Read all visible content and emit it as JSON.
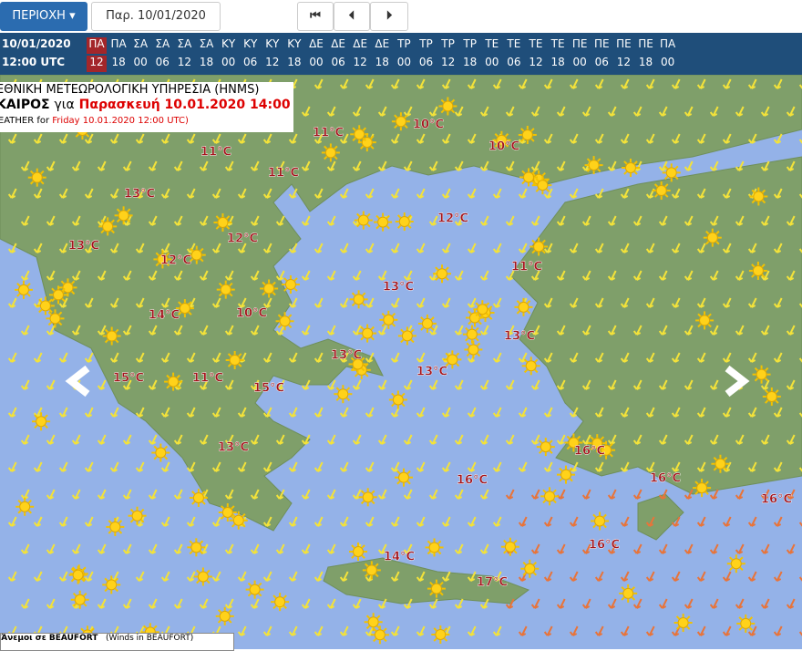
{
  "toolbar": {
    "region": "ΠΕΡΙΟΧΗ",
    "date": "Παρ. 10/01/2020 12:00 UTC"
  },
  "timeline": {
    "date": "10/01/2020",
    "time": "12:00 UTC",
    "days": [
      "ΠΑ",
      "ΠΑ",
      "ΣΑ",
      "ΣΑ",
      "ΣΑ",
      "ΣΑ",
      "ΚΥ",
      "ΚΥ",
      "ΚΥ",
      "ΚΥ",
      "ΔΕ",
      "ΔΕ",
      "ΔΕ",
      "ΔΕ",
      "ΤΡ",
      "ΤΡ",
      "ΤΡ",
      "ΤΡ",
      "ΤΕ",
      "ΤΕ",
      "ΤΕ",
      "ΤΕ",
      "ΠΕ",
      "ΠΕ",
      "ΠΕ",
      "ΠΕ",
      "ΠΑ"
    ],
    "hours": [
      "12",
      "18",
      "00",
      "06",
      "12",
      "18",
      "00",
      "06",
      "12",
      "18",
      "00",
      "06",
      "12",
      "18",
      "00",
      "06",
      "12",
      "18",
      "00",
      "06",
      "12",
      "18",
      "00",
      "06",
      "12",
      "18",
      "00"
    ]
  },
  "header": {
    "agency": "ΕΘΝΙΚΗ ΜΕΤΕΩΡΟΛΟΓΙΚΗ ΥΠΗΡΕΣΙΑ (HNMS)",
    "weather_gr": "ΚΑΙΡΟΣ",
    "for_gr": "για",
    "date_gr": "Παρασκευή 10.01.2020 14:00",
    "weather_en": "WEATHER for",
    "date_en": "Friday 10.01.2020 12:00 UTC)"
  },
  "temperatures": [
    "11°C",
    "10°C",
    "10°C",
    "11°C",
    "11°C",
    "13°C",
    "12°C",
    "12°C",
    "13°C",
    "12°C",
    "11°C",
    "13°C",
    "14°C",
    "10°C",
    "13°C",
    "13°C",
    "13°C",
    "15°C",
    "11°C",
    "15°C",
    "13°C",
    "16°C",
    "16°C",
    "16°C",
    "16°C",
    "16°C",
    "14°C",
    "17°C"
  ],
  "legend": {
    "title": "Άνεμοι σε BEAUFORT",
    "subtitle": "(Winds in BEAUFORT)"
  }
}
